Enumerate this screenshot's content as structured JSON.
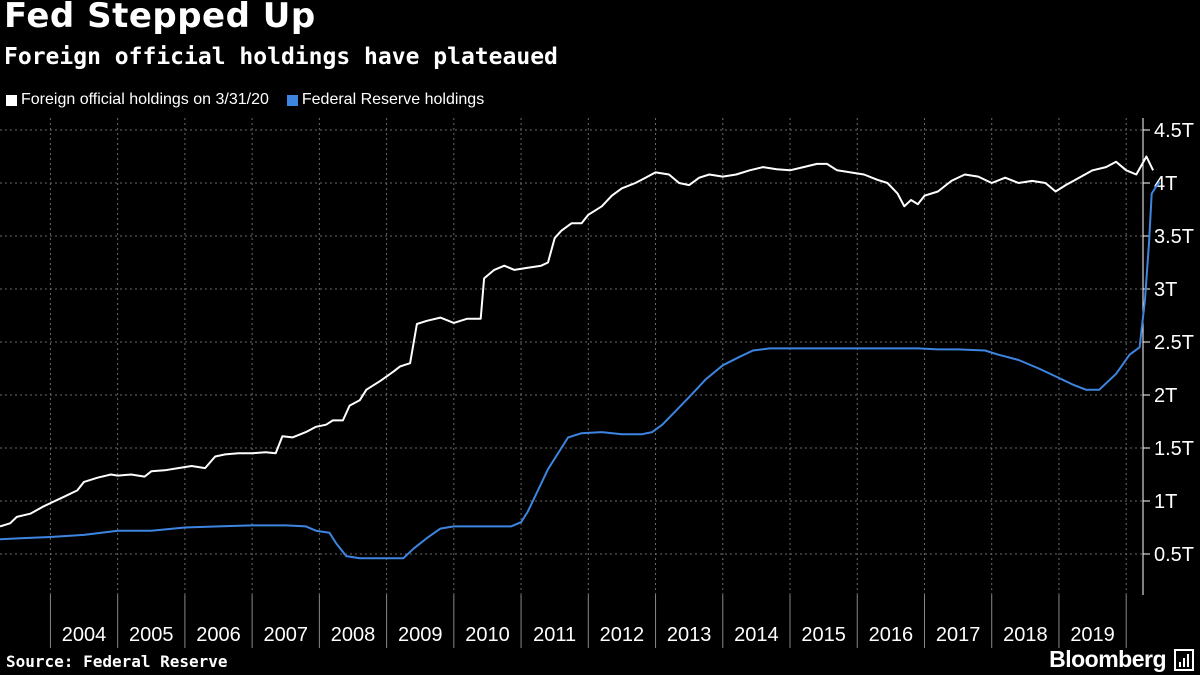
{
  "chart_data": {
    "type": "line",
    "title": "Fed Stepped Up",
    "subtitle": "Foreign official holdings have plateaued",
    "source": "Source: Federal Reserve",
    "brand": "Bloomberg",
    "ylim": [
      0,
      4.5
    ],
    "y_ticks": [
      0.5,
      1,
      1.5,
      2,
      2.5,
      3,
      3.5,
      4,
      4.5
    ],
    "y_tick_labels": [
      "0.5T",
      "1T",
      "1.5T",
      "2T",
      "2.5T",
      "3T",
      "3.5T",
      "4T",
      "4.5T"
    ],
    "x_range": [
      2003.25,
      2020.25
    ],
    "x_tick_labels": [
      "2004",
      "2005",
      "2006",
      "2007",
      "2008",
      "2009",
      "2010",
      "2011",
      "2012",
      "2013",
      "2014",
      "2015",
      "2016",
      "2017",
      "2018",
      "2019"
    ],
    "series": [
      {
        "name": "Foreign official holdings on 3/31/20",
        "color": "#ffffff",
        "points": [
          [
            2003.25,
            0.76
          ],
          [
            2003.4,
            0.79
          ],
          [
            2003.5,
            0.85
          ],
          [
            2003.7,
            0.88
          ],
          [
            2003.9,
            0.95
          ],
          [
            2004.0,
            0.98
          ],
          [
            2004.2,
            1.04
          ],
          [
            2004.4,
            1.1
          ],
          [
            2004.5,
            1.18
          ],
          [
            2004.7,
            1.22
          ],
          [
            2004.9,
            1.25
          ],
          [
            2005.0,
            1.24
          ],
          [
            2005.2,
            1.25
          ],
          [
            2005.4,
            1.23
          ],
          [
            2005.5,
            1.28
          ],
          [
            2005.7,
            1.29
          ],
          [
            2005.9,
            1.31
          ],
          [
            2006.1,
            1.33
          ],
          [
            2006.3,
            1.31
          ],
          [
            2006.45,
            1.42
          ],
          [
            2006.6,
            1.44
          ],
          [
            2006.8,
            1.45
          ],
          [
            2007.0,
            1.45
          ],
          [
            2007.2,
            1.46
          ],
          [
            2007.35,
            1.45
          ],
          [
            2007.45,
            1.61
          ],
          [
            2007.6,
            1.6
          ],
          [
            2007.8,
            1.65
          ],
          [
            2007.95,
            1.7
          ],
          [
            2008.1,
            1.72
          ],
          [
            2008.2,
            1.76
          ],
          [
            2008.35,
            1.76
          ],
          [
            2008.45,
            1.9
          ],
          [
            2008.6,
            1.95
          ],
          [
            2008.7,
            2.05
          ],
          [
            2008.9,
            2.13
          ],
          [
            2009.1,
            2.22
          ],
          [
            2009.2,
            2.27
          ],
          [
            2009.35,
            2.3
          ],
          [
            2009.45,
            2.67
          ],
          [
            2009.6,
            2.7
          ],
          [
            2009.8,
            2.73
          ],
          [
            2010.0,
            2.68
          ],
          [
            2010.2,
            2.72
          ],
          [
            2010.4,
            2.72
          ],
          [
            2010.45,
            3.1
          ],
          [
            2010.6,
            3.18
          ],
          [
            2010.75,
            3.22
          ],
          [
            2010.9,
            3.18
          ],
          [
            2011.1,
            3.2
          ],
          [
            2011.3,
            3.22
          ],
          [
            2011.4,
            3.25
          ],
          [
            2011.5,
            3.48
          ],
          [
            2011.6,
            3.55
          ],
          [
            2011.75,
            3.62
          ],
          [
            2011.9,
            3.62
          ],
          [
            2012.0,
            3.7
          ],
          [
            2012.2,
            3.78
          ],
          [
            2012.35,
            3.88
          ],
          [
            2012.5,
            3.95
          ],
          [
            2012.7,
            4.0
          ],
          [
            2012.85,
            4.05
          ],
          [
            2013.0,
            4.1
          ],
          [
            2013.2,
            4.08
          ],
          [
            2013.35,
            4.0
          ],
          [
            2013.5,
            3.98
          ],
          [
            2013.65,
            4.05
          ],
          [
            2013.8,
            4.08
          ],
          [
            2014.0,
            4.06
          ],
          [
            2014.2,
            4.08
          ],
          [
            2014.4,
            4.12
          ],
          [
            2014.6,
            4.15
          ],
          [
            2014.8,
            4.13
          ],
          [
            2015.0,
            4.12
          ],
          [
            2015.2,
            4.15
          ],
          [
            2015.4,
            4.18
          ],
          [
            2015.55,
            4.18
          ],
          [
            2015.7,
            4.12
          ],
          [
            2015.9,
            4.1
          ],
          [
            2016.1,
            4.08
          ],
          [
            2016.3,
            4.03
          ],
          [
            2016.45,
            4.0
          ],
          [
            2016.6,
            3.9
          ],
          [
            2016.7,
            3.78
          ],
          [
            2016.8,
            3.84
          ],
          [
            2016.9,
            3.8
          ],
          [
            2017.0,
            3.88
          ],
          [
            2017.2,
            3.92
          ],
          [
            2017.4,
            4.02
          ],
          [
            2017.6,
            4.08
          ],
          [
            2017.8,
            4.06
          ],
          [
            2018.0,
            4.0
          ],
          [
            2018.2,
            4.05
          ],
          [
            2018.4,
            4.0
          ],
          [
            2018.6,
            4.02
          ],
          [
            2018.8,
            4.0
          ],
          [
            2018.95,
            3.92
          ],
          [
            2019.1,
            3.98
          ],
          [
            2019.3,
            4.05
          ],
          [
            2019.5,
            4.12
          ],
          [
            2019.7,
            4.15
          ],
          [
            2019.85,
            4.2
          ],
          [
            2020.0,
            4.12
          ],
          [
            2020.15,
            4.08
          ],
          [
            2020.3,
            4.25
          ],
          [
            2020.4,
            4.12
          ]
        ]
      },
      {
        "name": "Federal Reserve holdings",
        "color": "#3d85e0",
        "points": [
          [
            2003.25,
            0.64
          ],
          [
            2003.6,
            0.65
          ],
          [
            2004.0,
            0.66
          ],
          [
            2004.5,
            0.68
          ],
          [
            2005.0,
            0.72
          ],
          [
            2005.5,
            0.72
          ],
          [
            2006.0,
            0.75
          ],
          [
            2006.5,
            0.76
          ],
          [
            2007.0,
            0.77
          ],
          [
            2007.5,
            0.77
          ],
          [
            2007.8,
            0.76
          ],
          [
            2007.95,
            0.72
          ],
          [
            2008.15,
            0.7
          ],
          [
            2008.25,
            0.6
          ],
          [
            2008.4,
            0.48
          ],
          [
            2008.6,
            0.46
          ],
          [
            2009.0,
            0.46
          ],
          [
            2009.25,
            0.46
          ],
          [
            2009.4,
            0.55
          ],
          [
            2009.6,
            0.65
          ],
          [
            2009.8,
            0.74
          ],
          [
            2010.0,
            0.76
          ],
          [
            2010.5,
            0.76
          ],
          [
            2010.85,
            0.76
          ],
          [
            2011.0,
            0.8
          ],
          [
            2011.1,
            0.9
          ],
          [
            2011.25,
            1.1
          ],
          [
            2011.4,
            1.3
          ],
          [
            2011.6,
            1.5
          ],
          [
            2011.7,
            1.6
          ],
          [
            2011.9,
            1.64
          ],
          [
            2012.2,
            1.65
          ],
          [
            2012.5,
            1.63
          ],
          [
            2012.8,
            1.63
          ],
          [
            2012.95,
            1.65
          ],
          [
            2013.1,
            1.72
          ],
          [
            2013.3,
            1.85
          ],
          [
            2013.5,
            1.98
          ],
          [
            2013.75,
            2.15
          ],
          [
            2014.0,
            2.28
          ],
          [
            2014.25,
            2.36
          ],
          [
            2014.45,
            2.42
          ],
          [
            2014.7,
            2.44
          ],
          [
            2015.0,
            2.44
          ],
          [
            2015.5,
            2.44
          ],
          [
            2016.0,
            2.44
          ],
          [
            2016.5,
            2.44
          ],
          [
            2016.9,
            2.44
          ],
          [
            2017.2,
            2.43
          ],
          [
            2017.5,
            2.43
          ],
          [
            2017.9,
            2.42
          ],
          [
            2018.1,
            2.38
          ],
          [
            2018.4,
            2.33
          ],
          [
            2018.7,
            2.25
          ],
          [
            2019.0,
            2.16
          ],
          [
            2019.2,
            2.1
          ],
          [
            2019.4,
            2.05
          ],
          [
            2019.6,
            2.05
          ],
          [
            2019.85,
            2.2
          ],
          [
            2020.05,
            2.38
          ],
          [
            2020.2,
            2.45
          ],
          [
            2020.28,
            2.9
          ],
          [
            2020.34,
            3.45
          ],
          [
            2020.38,
            3.9
          ],
          [
            2020.45,
            3.97
          ],
          [
            2020.5,
            4.01
          ]
        ]
      }
    ]
  }
}
